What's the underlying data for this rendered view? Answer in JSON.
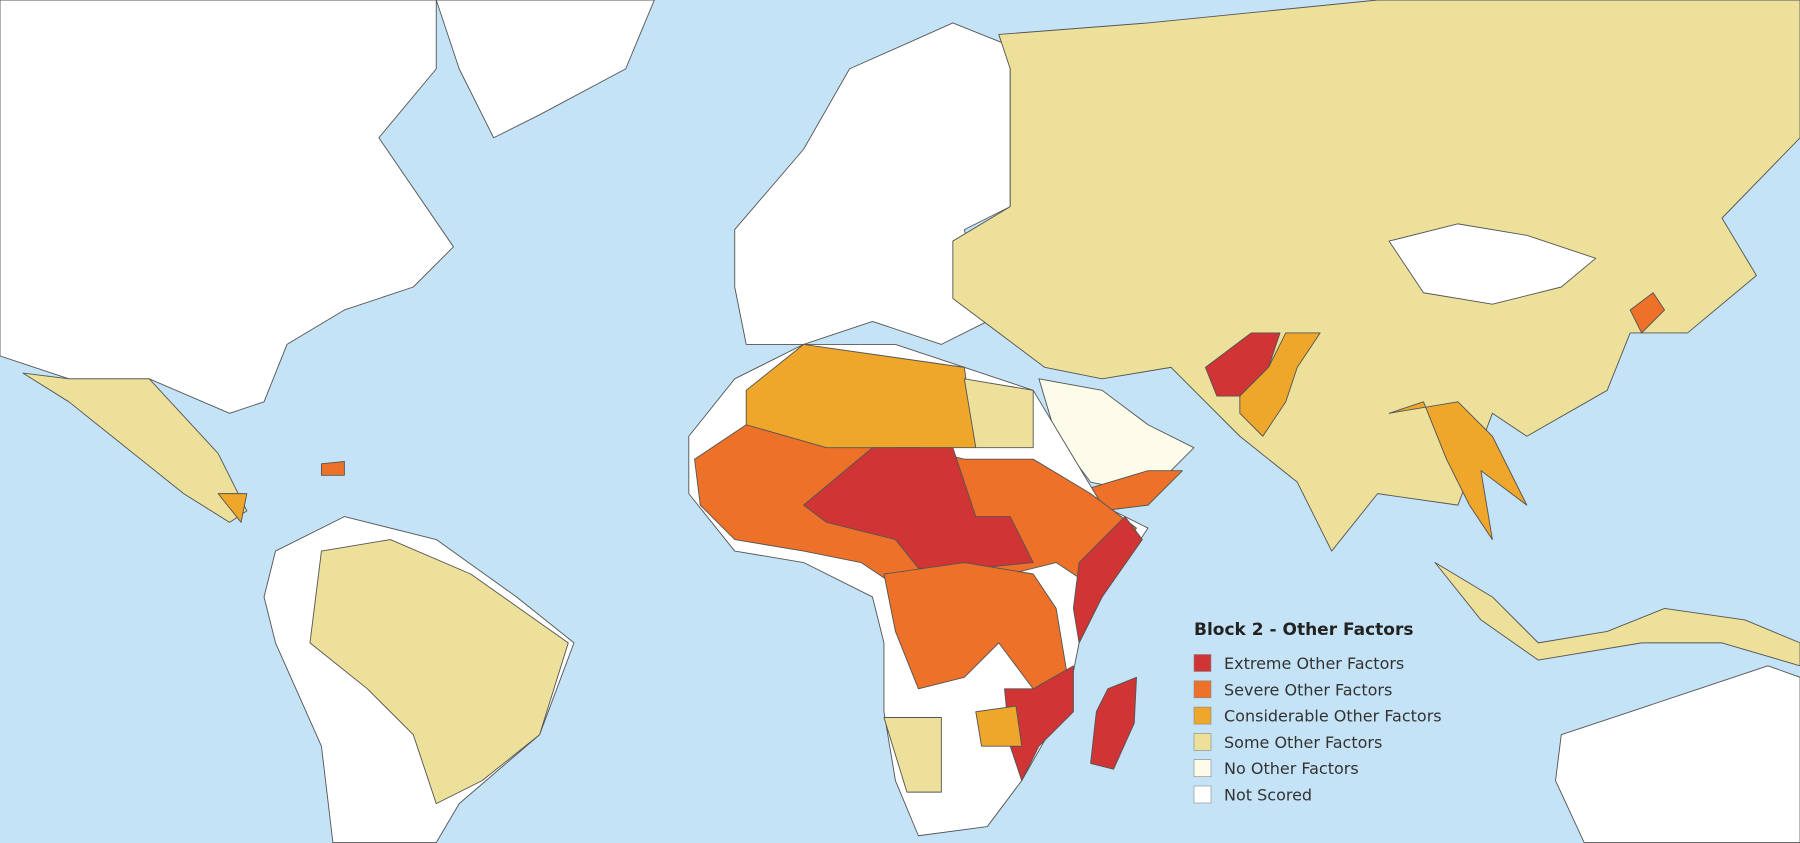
{
  "legend": {
    "title": "Block 2 - Other Factors",
    "items": [
      {
        "label": "Extreme Other Factors",
        "color": "#d13434"
      },
      {
        "label": "Severe Other Factors",
        "color": "#ee7129"
      },
      {
        "label": "Considerable Other Factors",
        "color": "#eea62b"
      },
      {
        "label": "Some Other Factors",
        "color": "#ede09a"
      },
      {
        "label": "No Other Factors",
        "color": "#fdfbea"
      },
      {
        "label": "Not Scored",
        "color": "#ffffff"
      }
    ]
  }
}
